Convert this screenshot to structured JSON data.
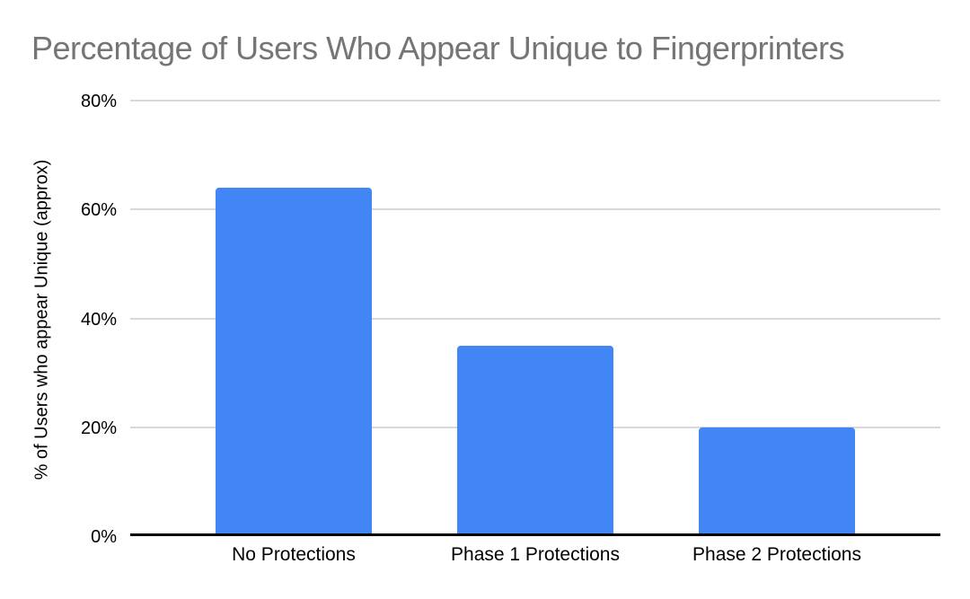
{
  "chart_data": {
    "type": "bar",
    "title": "Percentage of Users Who Appear Unique to Fingerprinters",
    "xlabel": "",
    "ylabel": "% of Users who appear Unique (approx)",
    "categories": [
      "No Protections",
      "Phase 1 Protections",
      "Phase 2 Protections"
    ],
    "values": [
      64,
      35,
      20
    ],
    "ylim": [
      0,
      80
    ],
    "yticks": [
      0,
      20,
      40,
      60,
      80
    ],
    "ytick_labels": [
      "0%",
      "20%",
      "40%",
      "60%",
      "80%"
    ],
    "grid": true,
    "legend": "none",
    "colors": {
      "bar": "#4285F4",
      "title_text": "#757575",
      "gridline": "#d9d9d9",
      "axis_line": "#000000",
      "tick_text": "#000000"
    }
  }
}
